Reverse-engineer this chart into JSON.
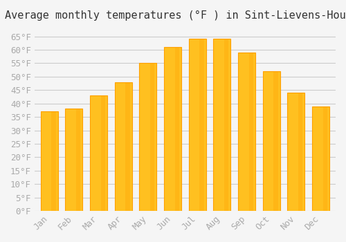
{
  "title": "Average monthly temperatures (°F ) in Sint-Lievens-Houtem",
  "months": [
    "Jan",
    "Feb",
    "Mar",
    "Apr",
    "May",
    "Jun",
    "Jul",
    "Aug",
    "Sep",
    "Oct",
    "Nov",
    "Dec"
  ],
  "values": [
    37,
    38,
    43,
    48,
    55,
    61,
    64,
    64,
    59,
    52,
    44,
    39
  ],
  "bar_color_face": "#FFC020",
  "bar_color_edge": "#FFA000",
  "background_color": "#F5F5F5",
  "grid_color": "#CCCCCC",
  "ylim": [
    0,
    68
  ],
  "yticks": [
    0,
    5,
    10,
    15,
    20,
    25,
    30,
    35,
    40,
    45,
    50,
    55,
    60,
    65
  ],
  "title_fontsize": 11,
  "tick_fontsize": 9,
  "tick_color": "#AAAAAA",
  "font_family": "monospace"
}
